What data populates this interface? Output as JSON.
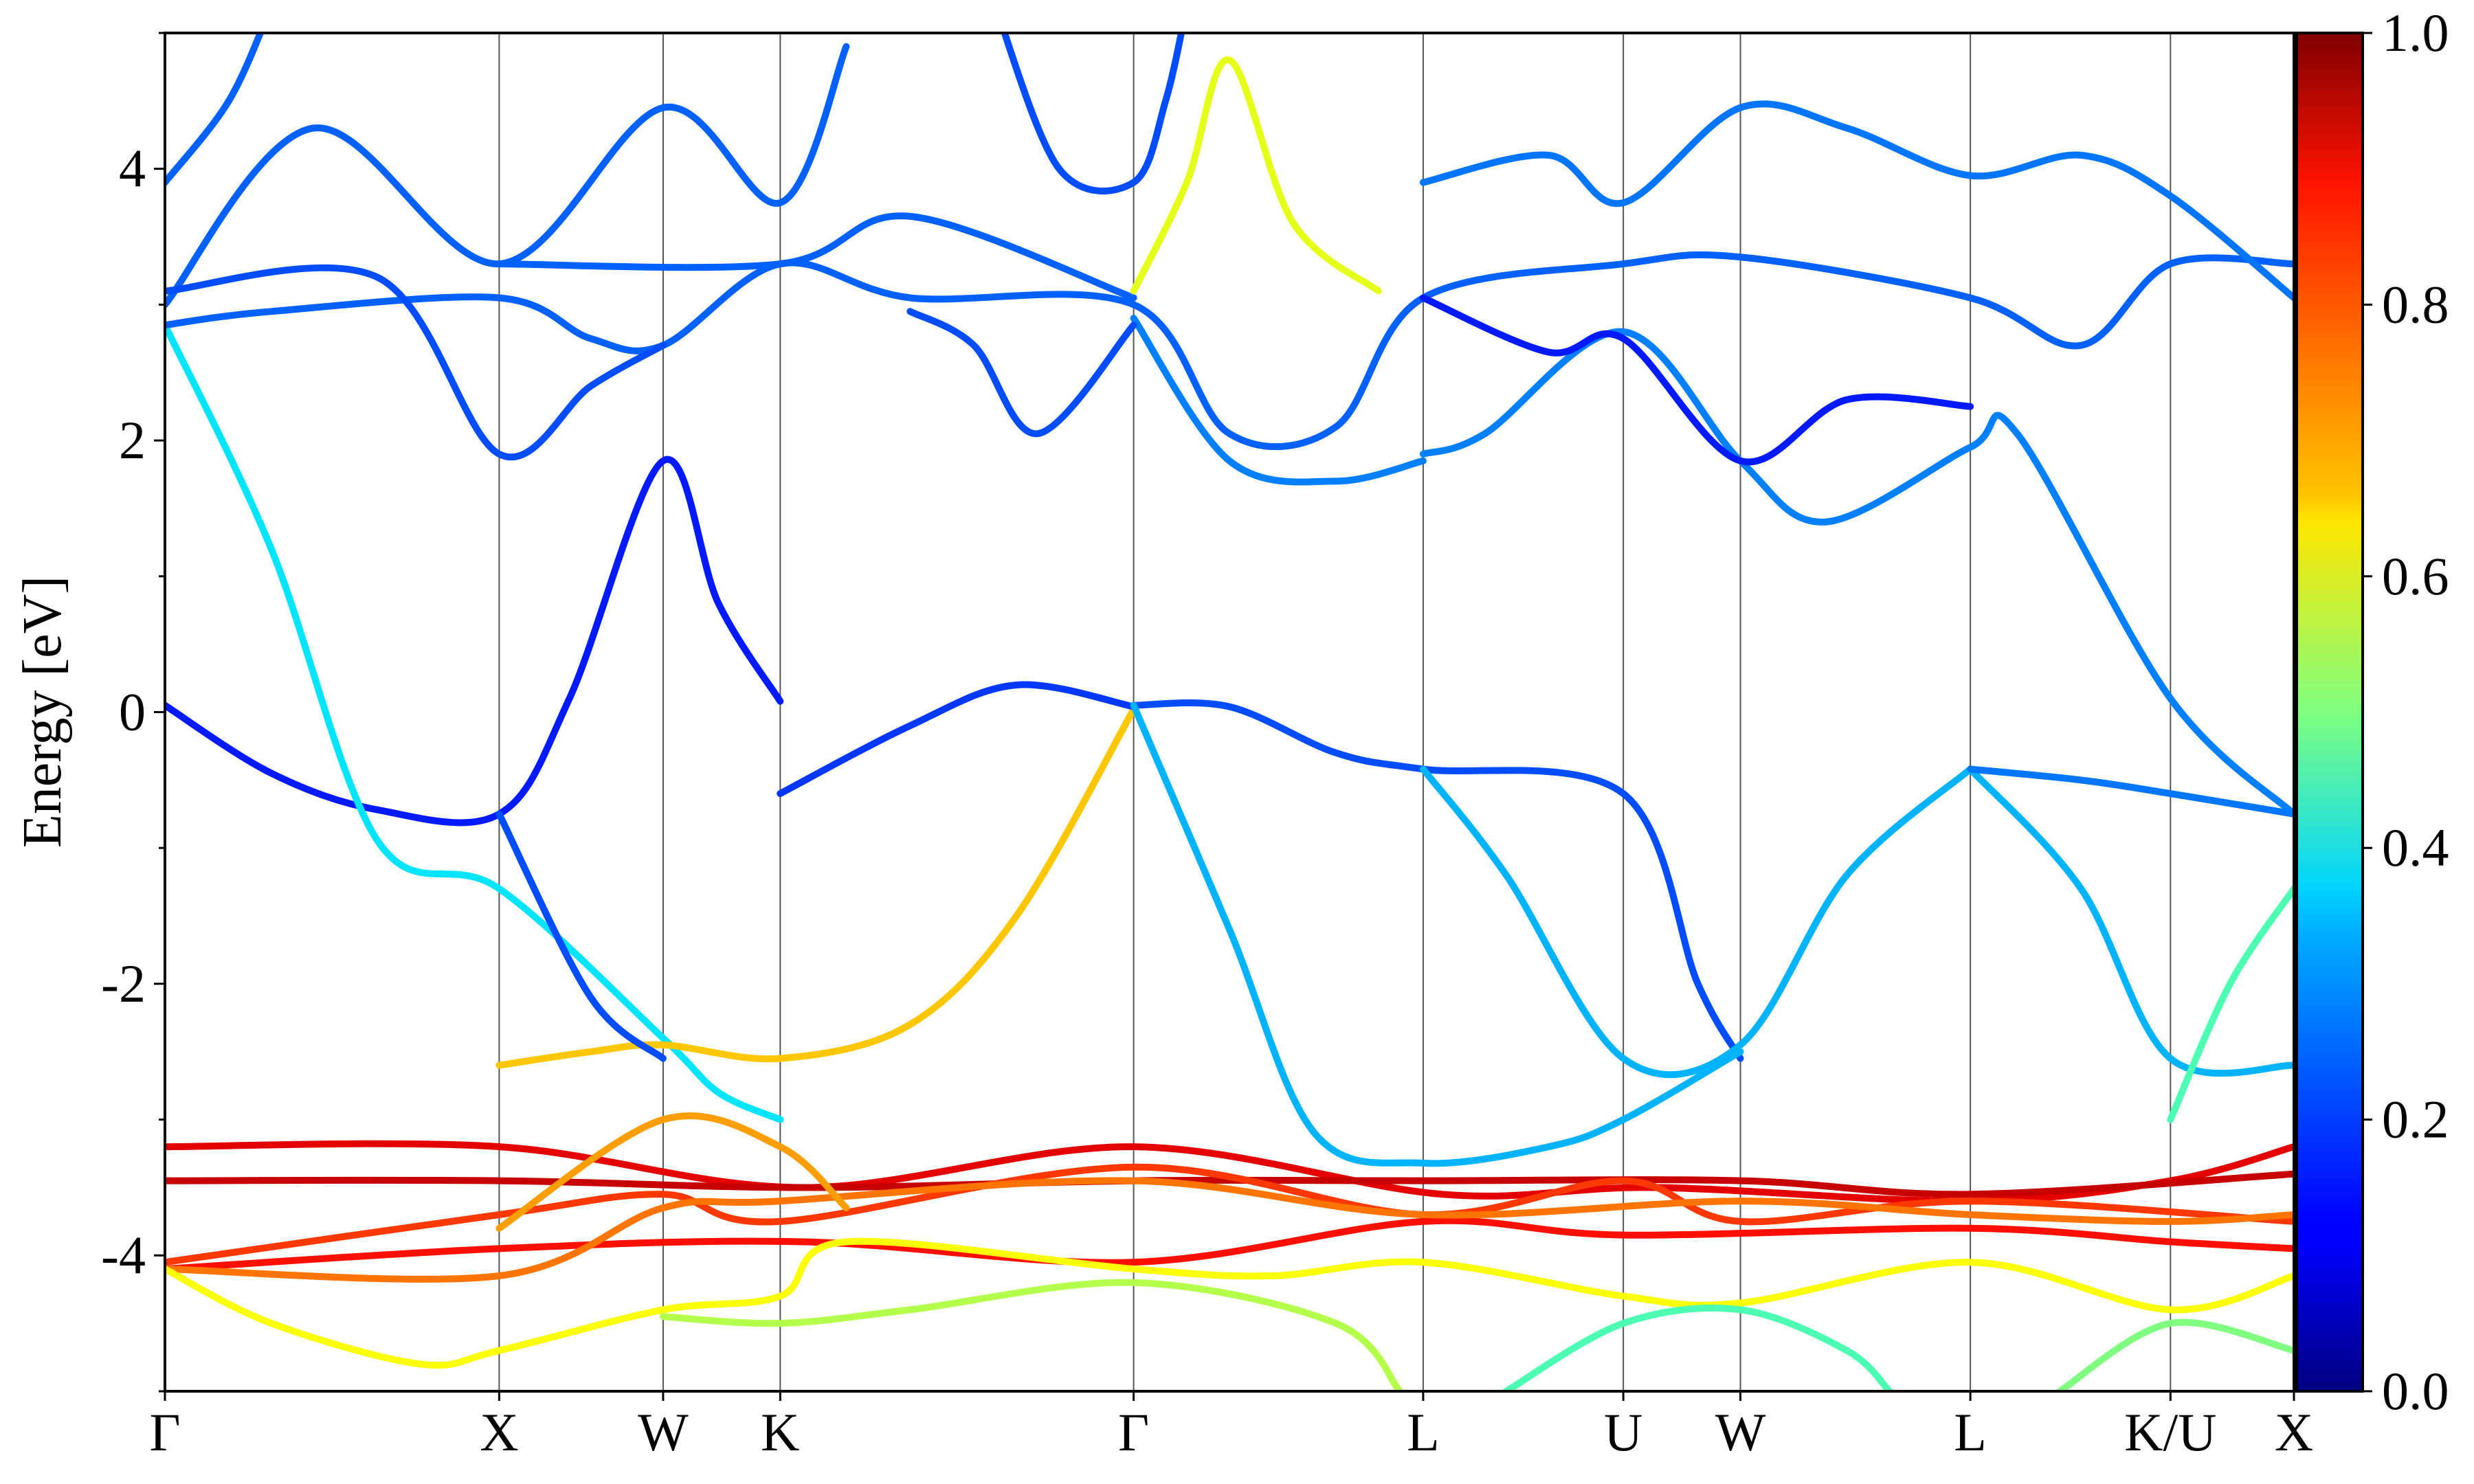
{
  "chart_data": {
    "type": "line",
    "ylabel": "Energy [eV]",
    "ylim": [
      -5,
      5
    ],
    "yticks": [
      -4,
      -2,
      0,
      2,
      4
    ],
    "xlim": [
      0,
      1
    ],
    "kpath": [
      {
        "label": "Γ",
        "x": 0.0
      },
      {
        "label": "X",
        "x": 0.157
      },
      {
        "label": "W",
        "x": 0.234
      },
      {
        "label": "K",
        "x": 0.289
      },
      {
        "label": "Γ",
        "x": 0.455
      },
      {
        "label": "L",
        "x": 0.591
      },
      {
        "label": "U",
        "x": 0.685
      },
      {
        "label": "W",
        "x": 0.74
      },
      {
        "label": "L",
        "x": 0.848
      },
      {
        "label": "K/U",
        "x": 0.942
      },
      {
        "label": "X",
        "x": 1.0
      }
    ],
    "colorbar": {
      "colormap": "jet",
      "range": [
        0.0,
        1.0
      ],
      "ticks": [
        "0.0",
        "0.2",
        "0.4",
        "0.6",
        "0.8",
        "1.0"
      ]
    },
    "series": [
      {
        "w": 0.15,
        "points": [
          [
            0.0,
            0.05
          ],
          [
            0.05,
            -0.45
          ],
          [
            0.1,
            -0.72
          ],
          [
            0.157,
            -0.75
          ],
          [
            0.19,
            0.1
          ],
          [
            0.234,
            1.85
          ],
          [
            0.26,
            0.8
          ],
          [
            0.289,
            0.08
          ]
        ]
      },
      {
        "w": 0.35,
        "points": [
          [
            0.0,
            2.85
          ],
          [
            0.05,
            1.2
          ],
          [
            0.1,
            -0.95
          ],
          [
            0.157,
            -1.3
          ],
          [
            0.234,
            -2.4
          ],
          [
            0.26,
            -2.8
          ],
          [
            0.289,
            -3.0
          ]
        ]
      },
      {
        "w": 0.68,
        "points": [
          [
            0.157,
            -2.6
          ],
          [
            0.2,
            -2.5
          ],
          [
            0.234,
            -2.45
          ],
          [
            0.289,
            -2.55
          ],
          [
            0.35,
            -2.3
          ],
          [
            0.4,
            -1.5
          ],
          [
            0.455,
            0.02
          ]
        ]
      },
      {
        "w": 0.18,
        "points": [
          [
            0.289,
            -0.6
          ],
          [
            0.35,
            -0.1
          ],
          [
            0.4,
            0.2
          ],
          [
            0.455,
            0.04
          ]
        ]
      },
      {
        "w": 0.2,
        "points": [
          [
            0.157,
            -0.75
          ],
          [
            0.2,
            -2.1
          ],
          [
            0.234,
            -2.55
          ]
        ]
      },
      {
        "w": 0.2,
        "points": [
          [
            0.455,
            0.05
          ],
          [
            0.5,
            0.04
          ],
          [
            0.55,
            -0.3
          ],
          [
            0.591,
            -0.42
          ],
          [
            0.685,
            -0.6
          ],
          [
            0.72,
            -2.0
          ],
          [
            0.74,
            -2.55
          ]
        ]
      },
      {
        "w": 0.3,
        "points": [
          [
            0.455,
            0.05
          ],
          [
            0.5,
            -1.6
          ],
          [
            0.54,
            -3.1
          ],
          [
            0.591,
            -3.32
          ],
          [
            0.65,
            -3.2
          ],
          [
            0.685,
            -3.0
          ],
          [
            0.74,
            -2.5
          ]
        ]
      },
      {
        "w": 0.3,
        "points": [
          [
            0.591,
            -0.42
          ],
          [
            0.63,
            -1.2
          ],
          [
            0.685,
            -2.55
          ],
          [
            0.74,
            -2.45
          ],
          [
            0.79,
            -1.2
          ],
          [
            0.848,
            -0.42
          ]
        ]
      },
      {
        "w": 0.3,
        "points": [
          [
            0.848,
            -0.42
          ],
          [
            0.9,
            -1.3
          ],
          [
            0.942,
            -2.55
          ],
          [
            1.0,
            -2.6
          ]
        ]
      },
      {
        "w": 0.24,
        "points": [
          [
            0.848,
            -0.42
          ],
          [
            0.9,
            -0.5
          ],
          [
            0.942,
            -0.6
          ],
          [
            1.0,
            -0.75
          ]
        ]
      },
      {
        "w": 0.45,
        "points": [
          [
            0.942,
            -3.0
          ],
          [
            0.97,
            -2.0
          ],
          [
            1.0,
            -1.3
          ]
        ]
      },
      {
        "w": 0.22,
        "points": [
          [
            0.0,
            2.85
          ],
          [
            0.05,
            2.95
          ],
          [
            0.157,
            3.05
          ],
          [
            0.2,
            2.75
          ],
          [
            0.234,
            2.7
          ],
          [
            0.289,
            3.3
          ],
          [
            0.35,
            3.05
          ],
          [
            0.455,
            3.0
          ],
          [
            0.5,
            2.05
          ],
          [
            0.55,
            2.1
          ],
          [
            0.591,
            3.05
          ],
          [
            0.685,
            3.3
          ],
          [
            0.74,
            3.35
          ],
          [
            0.848,
            3.05
          ],
          [
            0.9,
            2.7
          ],
          [
            0.942,
            3.3
          ],
          [
            1.0,
            3.3
          ]
        ]
      },
      {
        "w": 0.25,
        "points": [
          [
            0.591,
            1.9
          ],
          [
            0.62,
            2.05
          ],
          [
            0.685,
            2.8
          ],
          [
            0.74,
            1.85
          ],
          [
            0.78,
            1.4
          ],
          [
            0.848,
            1.95
          ],
          [
            0.87,
            2.05
          ],
          [
            0.942,
            0.1
          ],
          [
            1.0,
            -0.75
          ]
        ]
      },
      {
        "w": 0.25,
        "points": [
          [
            0.455,
            2.9
          ],
          [
            0.5,
            1.85
          ],
          [
            0.55,
            1.7
          ],
          [
            0.591,
            1.85
          ]
        ]
      },
      {
        "w": 0.22,
        "points": [
          [
            0.0,
            3.0
          ],
          [
            0.07,
            4.3
          ],
          [
            0.157,
            3.3
          ],
          [
            0.234,
            4.45
          ],
          [
            0.289,
            3.75
          ],
          [
            0.32,
            4.9
          ]
        ]
      },
      {
        "w": 0.2,
        "points": [
          [
            0.0,
            3.1
          ],
          [
            0.1,
            3.2
          ],
          [
            0.157,
            1.9
          ],
          [
            0.2,
            2.4
          ],
          [
            0.234,
            2.7
          ]
        ]
      },
      {
        "w": 0.22,
        "points": [
          [
            0.0,
            3.9
          ],
          [
            0.03,
            4.5
          ],
          [
            0.05,
            5.2
          ]
        ]
      },
      {
        "w": 0.22,
        "points": [
          [
            0.157,
            3.3
          ],
          [
            0.289,
            3.3
          ],
          [
            0.35,
            3.65
          ],
          [
            0.455,
            3.05
          ]
        ]
      },
      {
        "w": 0.2,
        "points": [
          [
            0.35,
            2.95
          ],
          [
            0.38,
            2.7
          ],
          [
            0.41,
            2.05
          ],
          [
            0.455,
            2.85
          ]
        ]
      },
      {
        "w": 0.2,
        "points": [
          [
            0.39,
            5.2
          ],
          [
            0.42,
            4.0
          ],
          [
            0.455,
            3.9
          ],
          [
            0.47,
            4.5
          ],
          [
            0.48,
            5.2
          ]
        ]
      },
      {
        "w": 0.6,
        "points": [
          [
            0.455,
            3.1
          ],
          [
            0.48,
            3.9
          ],
          [
            0.5,
            4.8
          ],
          [
            0.53,
            3.6
          ],
          [
            0.57,
            3.1
          ]
        ]
      },
      {
        "w": 0.24,
        "points": [
          [
            0.591,
            3.9
          ],
          [
            0.65,
            4.1
          ],
          [
            0.685,
            3.75
          ],
          [
            0.74,
            4.45
          ],
          [
            0.79,
            4.3
          ],
          [
            0.848,
            3.95
          ],
          [
            0.9,
            4.1
          ],
          [
            0.942,
            3.8
          ],
          [
            1.0,
            3.05
          ]
        ]
      },
      {
        "w": 0.15,
        "points": [
          [
            0.591,
            3.05
          ],
          [
            0.65,
            2.65
          ],
          [
            0.685,
            2.75
          ],
          [
            0.74,
            1.85
          ],
          [
            0.79,
            2.3
          ],
          [
            0.848,
            2.25
          ]
        ]
      },
      {
        "w": 0.9,
        "points": [
          [
            0.0,
            -3.2
          ],
          [
            0.157,
            -3.2
          ],
          [
            0.3,
            -3.5
          ],
          [
            0.455,
            -3.2
          ],
          [
            0.6,
            -3.55
          ],
          [
            0.7,
            -3.5
          ],
          [
            0.848,
            -3.6
          ],
          [
            0.942,
            -3.45
          ],
          [
            1.0,
            -3.2
          ]
        ]
      },
      {
        "w": 0.93,
        "points": [
          [
            0.0,
            -3.45
          ],
          [
            0.157,
            -3.45
          ],
          [
            0.3,
            -3.5
          ],
          [
            0.455,
            -3.45
          ],
          [
            0.591,
            -3.45
          ],
          [
            0.74,
            -3.45
          ],
          [
            0.848,
            -3.55
          ],
          [
            1.0,
            -3.4
          ]
        ]
      },
      {
        "w": 0.82,
        "points": [
          [
            0.0,
            -4.05
          ],
          [
            0.157,
            -3.7
          ],
          [
            0.234,
            -3.55
          ],
          [
            0.289,
            -3.75
          ],
          [
            0.455,
            -3.35
          ],
          [
            0.591,
            -3.7
          ],
          [
            0.685,
            -3.45
          ],
          [
            0.74,
            -3.75
          ],
          [
            0.848,
            -3.6
          ],
          [
            1.0,
            -3.75
          ]
        ]
      },
      {
        "w": 0.86,
        "points": [
          [
            0.0,
            -4.1
          ],
          [
            0.157,
            -3.95
          ],
          [
            0.3,
            -3.9
          ],
          [
            0.455,
            -4.05
          ],
          [
            0.591,
            -3.75
          ],
          [
            0.685,
            -3.85
          ],
          [
            0.848,
            -3.8
          ],
          [
            0.942,
            -3.9
          ],
          [
            1.0,
            -3.95
          ]
        ]
      },
      {
        "w": 0.76,
        "points": [
          [
            0.0,
            -4.1
          ],
          [
            0.157,
            -4.15
          ],
          [
            0.234,
            -3.65
          ],
          [
            0.289,
            -3.6
          ],
          [
            0.455,
            -3.45
          ],
          [
            0.591,
            -3.7
          ],
          [
            0.74,
            -3.6
          ],
          [
            0.848,
            -3.7
          ],
          [
            0.942,
            -3.75
          ],
          [
            1.0,
            -3.7
          ]
        ]
      },
      {
        "w": 0.62,
        "points": [
          [
            0.0,
            -4.1
          ],
          [
            0.05,
            -4.5
          ],
          [
            0.12,
            -4.8
          ],
          [
            0.157,
            -4.7
          ],
          [
            0.234,
            -4.4
          ],
          [
            0.289,
            -4.3
          ],
          [
            0.32,
            -3.9
          ],
          [
            0.455,
            -4.1
          ],
          [
            0.52,
            -4.15
          ],
          [
            0.591,
            -4.05
          ],
          [
            0.685,
            -4.3
          ],
          [
            0.74,
            -4.35
          ],
          [
            0.848,
            -4.05
          ],
          [
            0.942,
            -4.4
          ],
          [
            1.0,
            -4.15
          ]
        ]
      },
      {
        "w": 0.55,
        "points": [
          [
            0.234,
            -4.45
          ],
          [
            0.289,
            -4.5
          ],
          [
            0.35,
            -4.4
          ],
          [
            0.455,
            -4.2
          ],
          [
            0.55,
            -4.5
          ],
          [
            0.58,
            -5.0
          ]
        ]
      },
      {
        "w": 0.72,
        "points": [
          [
            0.157,
            -3.8
          ],
          [
            0.234,
            -3.0
          ],
          [
            0.289,
            -3.2
          ],
          [
            0.32,
            -3.65
          ]
        ]
      },
      {
        "w": 0.45,
        "points": [
          [
            0.63,
            -5.0
          ],
          [
            0.685,
            -4.5
          ],
          [
            0.74,
            -4.4
          ],
          [
            0.79,
            -4.7
          ],
          [
            0.81,
            -5.0
          ]
        ]
      },
      {
        "w": 0.5,
        "points": [
          [
            0.89,
            -5.0
          ],
          [
            0.942,
            -4.5
          ],
          [
            1.0,
            -4.7
          ]
        ]
      }
    ]
  }
}
